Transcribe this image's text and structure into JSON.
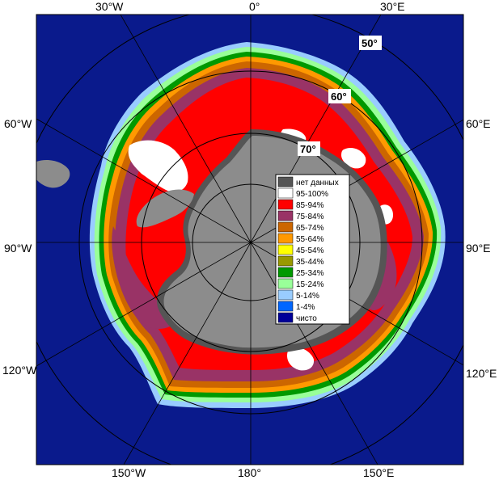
{
  "map": {
    "lon_labels": {
      "w30": "30°W",
      "lon0": "0°",
      "e30": "30°E",
      "w60": "60°W",
      "e60": "60°E",
      "w90": "90°W",
      "e90": "90°E",
      "w120": "120°W",
      "e120": "120°E",
      "w150": "150°W",
      "lon180": "180°",
      "e150": "150°E"
    },
    "lat_labels": {
      "lat50": "50°",
      "lat60": "60°",
      "lat70": "70°"
    },
    "colors": {
      "ocean": "#0a1a8c",
      "land": "#8c8c8c",
      "no_data": "#555555"
    }
  },
  "legend": {
    "items": [
      {
        "label": "нет данных",
        "color": "#555555"
      },
      {
        "label": "95-100%",
        "color": "#ffffff"
      },
      {
        "label": "85-94%",
        "color": "#ff0000"
      },
      {
        "label": "75-84%",
        "color": "#993366"
      },
      {
        "label": "65-74%",
        "color": "#cc6600"
      },
      {
        "label": "55-64%",
        "color": "#ff9900"
      },
      {
        "label": "45-54%",
        "color": "#ffff00"
      },
      {
        "label": "35-44%",
        "color": "#999900"
      },
      {
        "label": "25-34%",
        "color": "#009900"
      },
      {
        "label": "15-24%",
        "color": "#99ff99"
      },
      {
        "label": "5-14%",
        "color": "#99ccff"
      },
      {
        "label": "1-4%",
        "color": "#0066ff"
      },
      {
        "label": "чисто",
        "color": "#000099"
      }
    ]
  }
}
